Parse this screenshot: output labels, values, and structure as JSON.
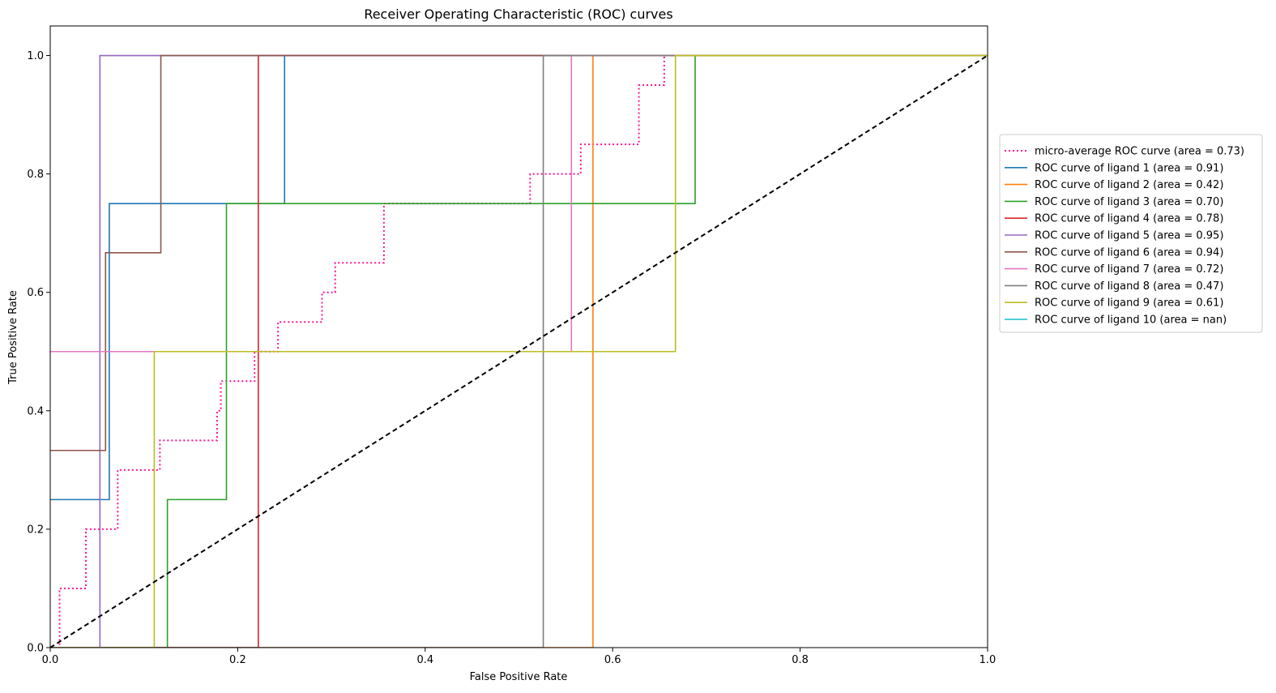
{
  "chart_data": {
    "type": "line",
    "title": "Receiver Operating Characteristic (ROC) curves",
    "xlabel": "False Positive Rate",
    "ylabel": "True Positive Rate",
    "xlim": [
      0.0,
      1.0
    ],
    "ylim": [
      0.0,
      1.05
    ],
    "xticks": [
      0.0,
      0.2,
      0.4,
      0.6,
      0.8,
      1.0
    ],
    "yticks": [
      0.0,
      0.2,
      0.4,
      0.6,
      0.8,
      1.0
    ],
    "tick_labels_x": [
      "0.0",
      "0.2",
      "0.4",
      "0.6",
      "0.8",
      "1.0"
    ],
    "tick_labels_y": [
      "0.0",
      "0.2",
      "0.4",
      "0.6",
      "0.8",
      "1.0"
    ],
    "grid": false,
    "legend_position": "center-right, outside plot",
    "series": [
      {
        "name": "micro-average ROC curve (area = 0.73)",
        "color": "#ff1493",
        "style": "dotted",
        "x": [
          0.0,
          0.01,
          0.01,
          0.038,
          0.038,
          0.072,
          0.072,
          0.117,
          0.117,
          0.178,
          0.178,
          0.182,
          0.182,
          0.218,
          0.218,
          0.243,
          0.243,
          0.29,
          0.29,
          0.304,
          0.304,
          0.356,
          0.356,
          0.512,
          0.512,
          0.566,
          0.566,
          0.628,
          0.628,
          0.655,
          0.655
        ],
        "y": [
          0.0,
          0.0,
          0.1,
          0.1,
          0.2,
          0.2,
          0.3,
          0.3,
          0.35,
          0.35,
          0.4,
          0.4,
          0.45,
          0.45,
          0.5,
          0.5,
          0.55,
          0.55,
          0.6,
          0.6,
          0.65,
          0.65,
          0.75,
          0.75,
          0.8,
          0.8,
          0.85,
          0.85,
          0.95,
          0.95,
          1.0
        ]
      },
      {
        "name": "ROC curve of ligand 1 (area = 0.91)",
        "color": "#1f77b4",
        "style": "solid",
        "x": [
          0.0,
          0.063,
          0.063,
          0.25,
          0.25,
          1.0
        ],
        "y": [
          0.25,
          0.25,
          0.75,
          0.75,
          1.0,
          1.0
        ]
      },
      {
        "name": "ROC curve of ligand 2 (area = 0.42)",
        "color": "#ff7f0e",
        "style": "solid",
        "x": [
          0.0,
          0.579,
          0.579,
          1.0
        ],
        "y": [
          0.0,
          0.0,
          1.0,
          1.0
        ]
      },
      {
        "name": "ROC curve of ligand 3 (area = 0.70)",
        "color": "#2ca02c",
        "style": "solid",
        "x": [
          0.0,
          0.125,
          0.125,
          0.188,
          0.188,
          0.688,
          0.688,
          1.0
        ],
        "y": [
          0.0,
          0.0,
          0.25,
          0.25,
          0.75,
          0.75,
          1.0,
          1.0
        ]
      },
      {
        "name": "ROC curve of ligand 4 (area = 0.78)",
        "color": "#d62728",
        "style": "solid",
        "x": [
          0.0,
          0.222,
          0.222,
          1.0
        ],
        "y": [
          0.0,
          0.0,
          1.0,
          1.0
        ]
      },
      {
        "name": "ROC curve of ligand 5 (area = 0.95)",
        "color": "#9467bd",
        "style": "solid",
        "x": [
          0.0,
          0.053,
          0.053,
          1.0
        ],
        "y": [
          0.0,
          0.0,
          1.0,
          1.0
        ]
      },
      {
        "name": "ROC curve of ligand 6 (area = 0.94)",
        "color": "#8c564b",
        "style": "solid",
        "x": [
          0.0,
          0.059,
          0.059,
          0.118,
          0.118,
          1.0
        ],
        "y": [
          0.333,
          0.333,
          0.667,
          0.667,
          1.0,
          1.0
        ]
      },
      {
        "name": "ROC curve of ligand 7 (area = 0.72)",
        "color": "#e377c2",
        "style": "solid",
        "x": [
          0.0,
          0.556,
          0.556,
          1.0
        ],
        "y": [
          0.5,
          0.5,
          1.0,
          1.0
        ]
      },
      {
        "name": "ROC curve of ligand 8 (area = 0.47)",
        "color": "#7f7f7f",
        "style": "solid",
        "x": [
          0.0,
          0.526,
          0.526,
          1.0
        ],
        "y": [
          0.0,
          0.0,
          1.0,
          1.0
        ]
      },
      {
        "name": "ROC curve of ligand 9 (area = 0.61)",
        "color": "#bcbd22",
        "style": "solid",
        "x": [
          0.0,
          0.111,
          0.111,
          0.667,
          0.667,
          1.0
        ],
        "y": [
          0.0,
          0.0,
          0.5,
          0.5,
          1.0,
          1.0
        ]
      },
      {
        "name": "ROC curve of ligand 10 (area = nan)",
        "color": "#17becf",
        "style": "solid",
        "x": [],
        "y": []
      }
    ],
    "reference_line": {
      "color": "#000000",
      "style": "dashed",
      "x": [
        0.0,
        1.0
      ],
      "y": [
        0.0,
        1.0
      ]
    }
  }
}
